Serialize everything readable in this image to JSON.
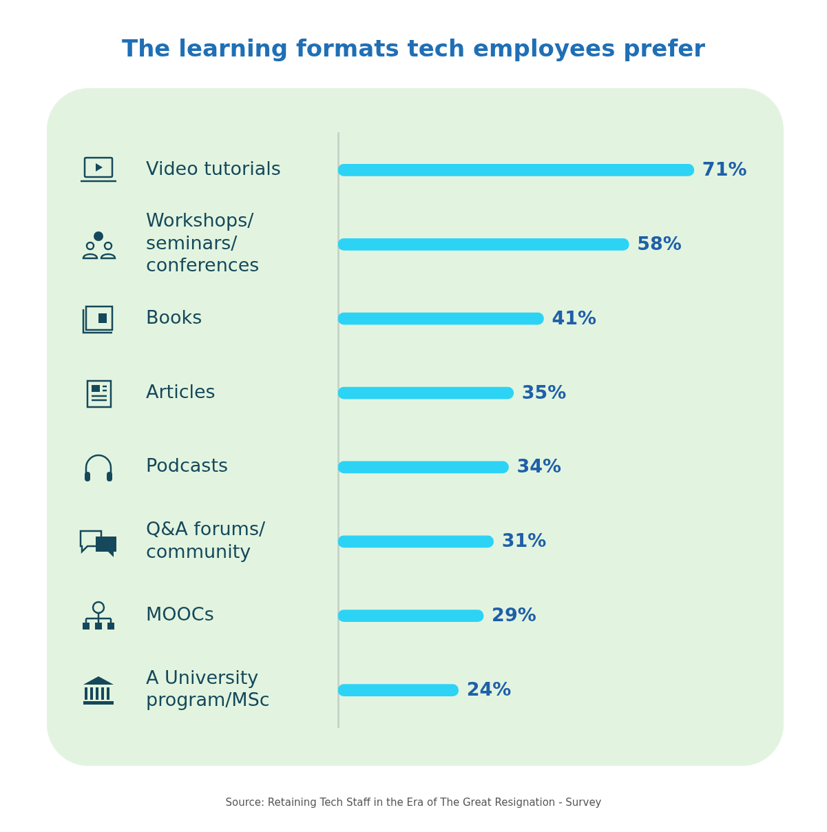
{
  "chart_data": {
    "type": "bar",
    "orientation": "horizontal",
    "title": "The learning formats tech employees prefer",
    "categories": [
      "Video tutorials",
      "Workshops/ seminars/ conferences",
      "Books",
      "Articles",
      "Podcasts",
      "Q&A forums/ community",
      "MOOCs",
      "A University program/MSc"
    ],
    "values": [
      71,
      58,
      41,
      35,
      34,
      31,
      29,
      24
    ],
    "value_labels": [
      "71%",
      "58%",
      "41%",
      "35%",
      "34%",
      "31%",
      "29%",
      "24%"
    ],
    "color": "#2dd3f5",
    "grid": false,
    "legend": false,
    "tick_labels": "y",
    "annotations": [
      "Source: Retaining Tech Staff in the Era of The Great Resignation - Survey"
    ]
  }
}
